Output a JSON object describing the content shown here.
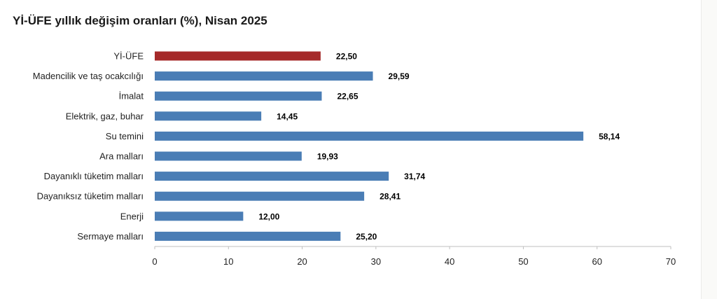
{
  "chart_data": {
    "type": "bar",
    "orientation": "horizontal",
    "title": "Yİ-ÜFE yıllık değişim oranları (%), Nisan 2025",
    "categories": [
      "Yİ-ÜFE",
      "Madencilik ve taş ocakcılığı",
      "İmalat",
      "Elektrik, gaz, buhar",
      "Su temini",
      "Ara malları",
      "Dayanıklı tüketim malları",
      "Dayanıksız tüketim malları",
      "Enerji",
      "Sermaye malları"
    ],
    "values": [
      22.5,
      29.59,
      22.65,
      14.45,
      58.14,
      19.93,
      31.74,
      28.41,
      12.0,
      25.2
    ],
    "value_labels": [
      "22,50",
      "29,59",
      "22,65",
      "14,45",
      "58,14",
      "19,93",
      "31,74",
      "28,41",
      "12,00",
      "25,20"
    ],
    "bar_colors": [
      "#a52a2a",
      "#4a7db5",
      "#4a7db5",
      "#4a7db5",
      "#4a7db5",
      "#4a7db5",
      "#4a7db5",
      "#4a7db5",
      "#4a7db5",
      "#4a7db5"
    ],
    "xlim": [
      0,
      70
    ],
    "xticks": [
      "0",
      "10",
      "20",
      "30",
      "40",
      "50",
      "60",
      "70"
    ],
    "xlabel": "",
    "ylabel": "",
    "grid": false,
    "legend": "none"
  }
}
